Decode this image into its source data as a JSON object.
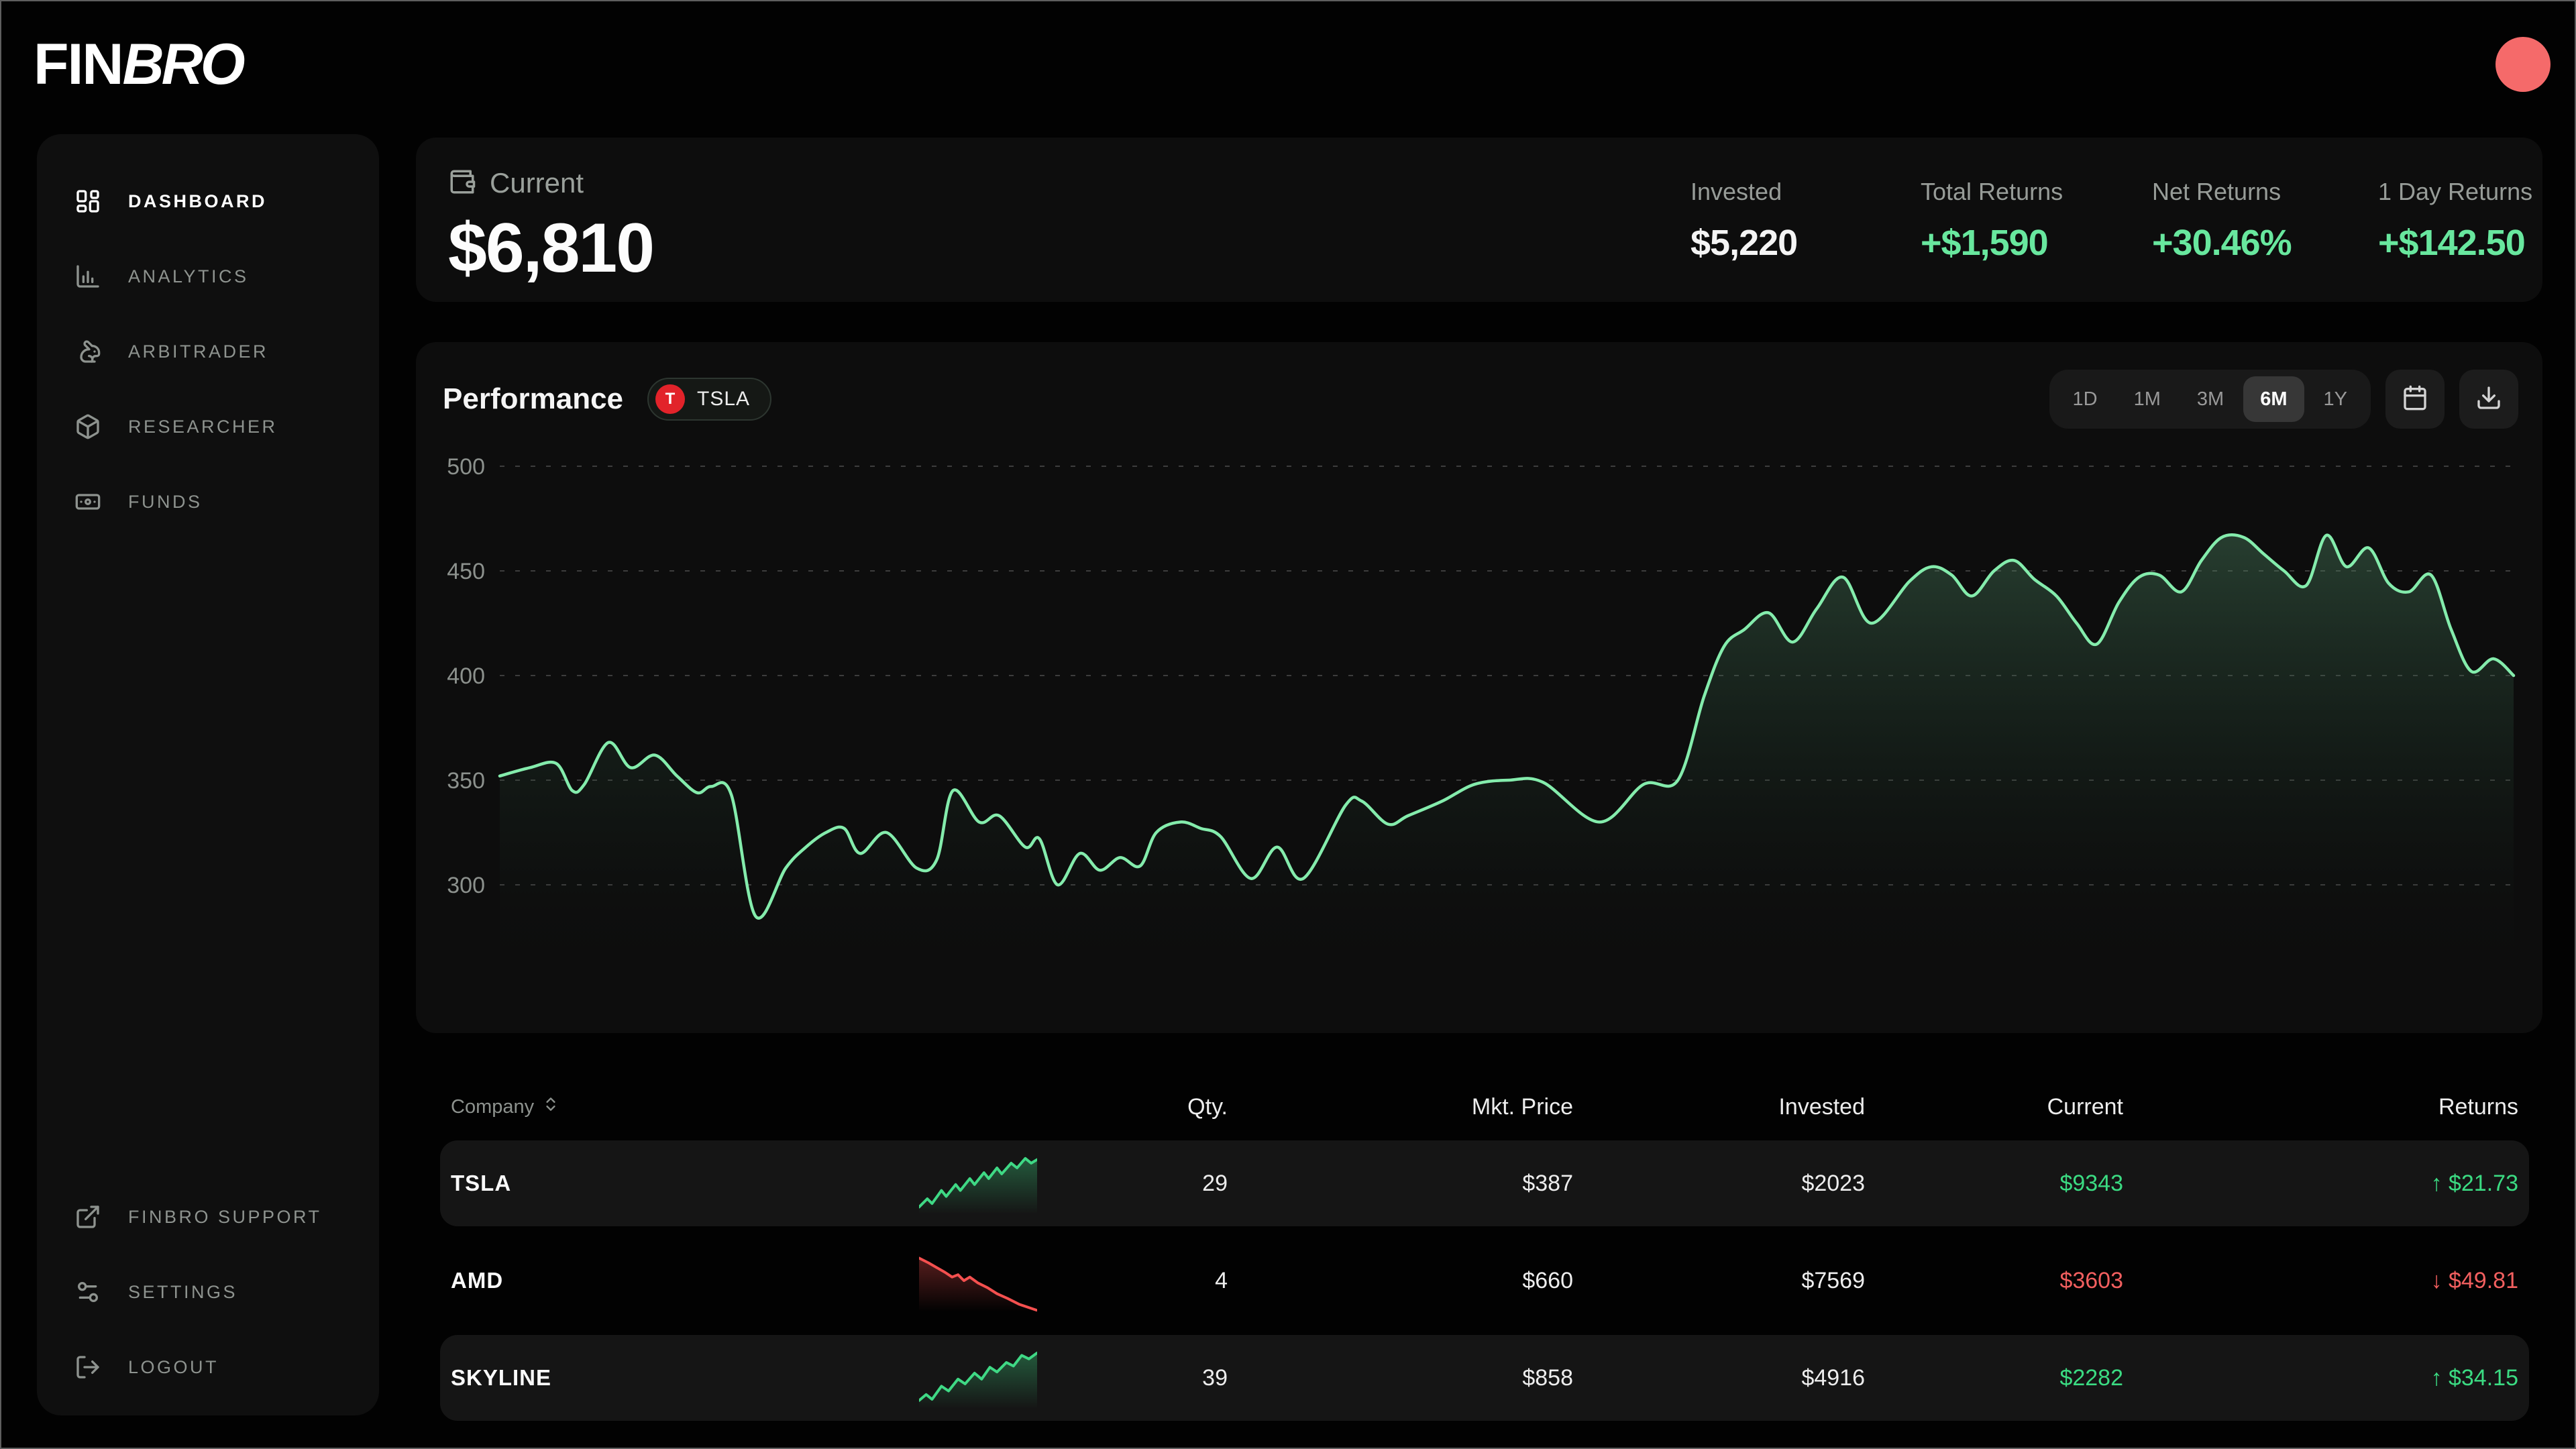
{
  "brand": {
    "fin": "FIN",
    "bro": "BRO"
  },
  "header": {
    "avatar_color": "#f56a6a"
  },
  "sidebar": {
    "items": [
      {
        "label": "DASHBOARD",
        "icon": "dashboard",
        "active": true
      },
      {
        "label": "ANALYTICS",
        "icon": "bar-chart",
        "active": false
      },
      {
        "label": "ARBITRADER",
        "icon": "rabbit",
        "active": false
      },
      {
        "label": "RESEARCHER",
        "icon": "box",
        "active": false
      },
      {
        "label": "FUNDS",
        "icon": "banknote",
        "active": false
      }
    ],
    "footer_items": [
      {
        "label": "FINBRO SUPPORT",
        "icon": "external-link"
      },
      {
        "label": "SETTINGS",
        "icon": "sliders"
      },
      {
        "label": "LOGOUT",
        "icon": "logout"
      }
    ]
  },
  "summary": {
    "current_label": "Current",
    "current_value": "$6,810",
    "stats": [
      {
        "label": "Invested",
        "value": "$5,220",
        "positive": false
      },
      {
        "label": "Total Returns",
        "value": "+$1,590",
        "positive": true
      },
      {
        "label": "Net Returns",
        "value": "+30.46%",
        "positive": true
      },
      {
        "label": "1 Day Returns",
        "value": "+$142.50",
        "positive": true
      }
    ]
  },
  "performance": {
    "title": "Performance",
    "badge": {
      "symbol": "T",
      "label": "TSLA",
      "color": "#e2232a"
    },
    "ranges": [
      "1D",
      "1M",
      "3M",
      "6M",
      "1Y"
    ],
    "active_range": "6M"
  },
  "chart_data": {
    "type": "area",
    "title": "Performance",
    "symbol": "TSLA",
    "range": "6M",
    "ylim": [
      280,
      505
    ],
    "yticks": [
      500,
      450,
      400,
      350,
      300
    ],
    "grid": "dashed-horizontal",
    "legend": "none",
    "line_color": "#84ecac",
    "fill_color": "#3f7a57",
    "points": [
      [
        0.0,
        352
      ],
      [
        0.015,
        356
      ],
      [
        0.028,
        358
      ],
      [
        0.036,
        345
      ],
      [
        0.042,
        348
      ],
      [
        0.054,
        368
      ],
      [
        0.065,
        356
      ],
      [
        0.077,
        362
      ],
      [
        0.088,
        352
      ],
      [
        0.098,
        344
      ],
      [
        0.105,
        347
      ],
      [
        0.115,
        343
      ],
      [
        0.127,
        285
      ],
      [
        0.142,
        308
      ],
      [
        0.152,
        318
      ],
      [
        0.162,
        325
      ],
      [
        0.171,
        327
      ],
      [
        0.179,
        315
      ],
      [
        0.192,
        325
      ],
      [
        0.207,
        308
      ],
      [
        0.217,
        312
      ],
      [
        0.225,
        345
      ],
      [
        0.238,
        330
      ],
      [
        0.248,
        333
      ],
      [
        0.261,
        318
      ],
      [
        0.268,
        322
      ],
      [
        0.277,
        300
      ],
      [
        0.288,
        315
      ],
      [
        0.298,
        307
      ],
      [
        0.308,
        313
      ],
      [
        0.318,
        309
      ],
      [
        0.326,
        325
      ],
      [
        0.338,
        330
      ],
      [
        0.348,
        327
      ],
      [
        0.358,
        323
      ],
      [
        0.373,
        303
      ],
      [
        0.386,
        318
      ],
      [
        0.399,
        303
      ],
      [
        0.42,
        338
      ],
      [
        0.428,
        340
      ],
      [
        0.441,
        329
      ],
      [
        0.451,
        333
      ],
      [
        0.468,
        340
      ],
      [
        0.484,
        348
      ],
      [
        0.501,
        350
      ],
      [
        0.518,
        349
      ],
      [
        0.546,
        330
      ],
      [
        0.568,
        348
      ],
      [
        0.585,
        350
      ],
      [
        0.598,
        390
      ],
      [
        0.608,
        414
      ],
      [
        0.618,
        422
      ],
      [
        0.63,
        430
      ],
      [
        0.642,
        416
      ],
      [
        0.654,
        432
      ],
      [
        0.667,
        447
      ],
      [
        0.681,
        425
      ],
      [
        0.7,
        445
      ],
      [
        0.711,
        452
      ],
      [
        0.721,
        448
      ],
      [
        0.731,
        438
      ],
      [
        0.742,
        450
      ],
      [
        0.752,
        455
      ],
      [
        0.762,
        446
      ],
      [
        0.773,
        438
      ],
      [
        0.783,
        425
      ],
      [
        0.793,
        415
      ],
      [
        0.804,
        435
      ],
      [
        0.814,
        447
      ],
      [
        0.824,
        448
      ],
      [
        0.835,
        440
      ],
      [
        0.845,
        455
      ],
      [
        0.855,
        466
      ],
      [
        0.866,
        466
      ],
      [
        0.876,
        458
      ],
      [
        0.886,
        450
      ],
      [
        0.897,
        443
      ],
      [
        0.907,
        467
      ],
      [
        0.917,
        452
      ],
      [
        0.928,
        461
      ],
      [
        0.938,
        444
      ],
      [
        0.948,
        440
      ],
      [
        0.959,
        448
      ],
      [
        0.969,
        422
      ],
      [
        0.979,
        402
      ],
      [
        0.99,
        408
      ],
      [
        1.0,
        400
      ]
    ]
  },
  "table": {
    "columns": [
      "Company",
      "Qty.",
      "Mkt. Price",
      "Invested",
      "Current",
      "Returns"
    ],
    "rows": [
      {
        "company": "TSLA",
        "qty": "29",
        "mkt_price": "$387",
        "invested": "$2023",
        "current": "$9343",
        "returns": "$21.73",
        "trend": "up",
        "highlighted": true,
        "spark": [
          [
            0,
            46
          ],
          [
            7,
            39
          ],
          [
            11,
            43
          ],
          [
            19,
            32
          ],
          [
            23,
            37
          ],
          [
            31,
            27
          ],
          [
            35,
            32
          ],
          [
            43,
            22
          ],
          [
            47,
            27
          ],
          [
            55,
            17
          ],
          [
            59,
            22
          ],
          [
            66,
            13
          ],
          [
            70,
            18
          ],
          [
            78,
            9
          ],
          [
            83,
            13
          ],
          [
            90,
            5
          ],
          [
            95,
            9
          ],
          [
            100,
            6
          ]
        ]
      },
      {
        "company": "AMD",
        "qty": "4",
        "mkt_price": "$660",
        "invested": "$7569",
        "current": "$3603",
        "returns": "$49.81",
        "trend": "down",
        "highlighted": false,
        "spark": [
          [
            0,
            7
          ],
          [
            8,
            11
          ],
          [
            15,
            15
          ],
          [
            22,
            19
          ],
          [
            28,
            23
          ],
          [
            33,
            21
          ],
          [
            38,
            26
          ],
          [
            43,
            23
          ],
          [
            50,
            28
          ],
          [
            58,
            32
          ],
          [
            66,
            37
          ],
          [
            75,
            41
          ],
          [
            85,
            46
          ],
          [
            100,
            51
          ]
        ]
      },
      {
        "company": "SKYLINE",
        "qty": "39",
        "mkt_price": "$858",
        "invested": "$4916",
        "current": "$2282",
        "returns": "$34.15",
        "trend": "up",
        "highlighted": true,
        "spark": [
          [
            0,
            45
          ],
          [
            6,
            40
          ],
          [
            11,
            44
          ],
          [
            19,
            33
          ],
          [
            25,
            37
          ],
          [
            33,
            27
          ],
          [
            39,
            31
          ],
          [
            47,
            22
          ],
          [
            53,
            27
          ],
          [
            60,
            17
          ],
          [
            66,
            21
          ],
          [
            74,
            13
          ],
          [
            80,
            16
          ],
          [
            87,
            7
          ],
          [
            93,
            10
          ],
          [
            100,
            5
          ]
        ]
      }
    ]
  }
}
